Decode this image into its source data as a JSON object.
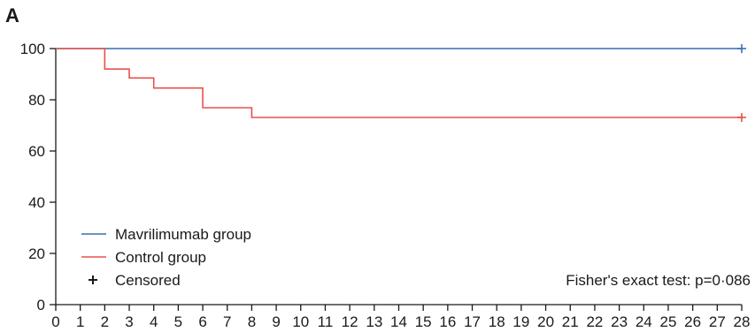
{
  "chart_data": {
    "type": "line",
    "panel_label": "A",
    "xlim": [
      0,
      28
    ],
    "ylim": [
      0,
      100
    ],
    "x_ticks": [
      0,
      1,
      2,
      3,
      4,
      5,
      6,
      7,
      8,
      9,
      10,
      11,
      12,
      13,
      14,
      15,
      16,
      17,
      18,
      19,
      20,
      21,
      22,
      23,
      24,
      25,
      26,
      27,
      28
    ],
    "y_ticks": [
      0,
      20,
      40,
      60,
      80,
      100
    ],
    "series": [
      {
        "name": "Mavrilimumab group",
        "color": "#3a6eb0",
        "step": true,
        "points": [
          [
            0,
            100
          ],
          [
            28,
            100
          ]
        ],
        "censored": [
          [
            28,
            100
          ]
        ]
      },
      {
        "name": "Control group",
        "color": "#e8504b",
        "step": true,
        "points": [
          [
            0,
            100
          ],
          [
            2,
            92
          ],
          [
            3,
            88.5
          ],
          [
            4,
            84.6
          ],
          [
            6,
            76.9
          ],
          [
            8,
            73.1
          ],
          [
            28,
            73.1
          ]
        ],
        "censored": [
          [
            28,
            73.1
          ]
        ]
      }
    ],
    "legend": {
      "position": "bottom-left",
      "items": [
        {
          "label": "Mavrilimumab group",
          "symbol": "line",
          "color": "#3a6eb0"
        },
        {
          "label": "Control group",
          "symbol": "line",
          "color": "#e8504b"
        },
        {
          "label": "Censored",
          "symbol": "plus",
          "color": "#1a1a1a"
        }
      ]
    },
    "annotation": "Fisher's exact test: p=0·086"
  }
}
